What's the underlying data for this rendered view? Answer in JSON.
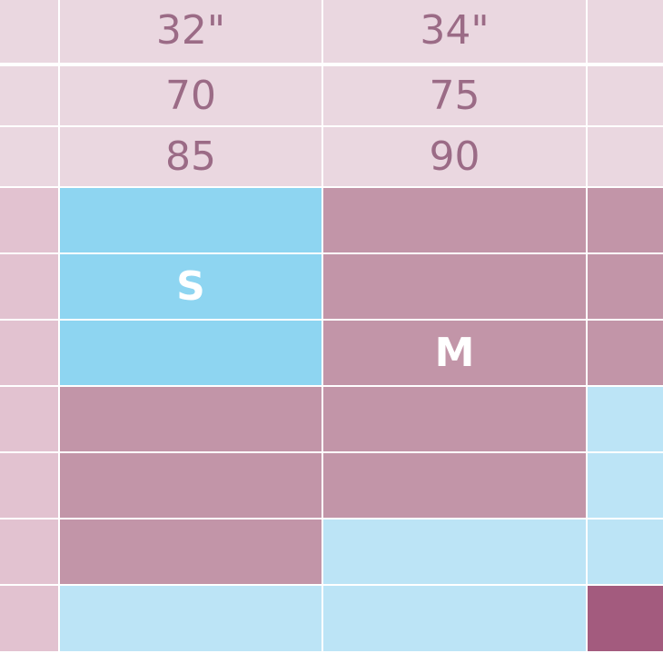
{
  "colors": {
    "header_bg": "#ead7e0",
    "label_col_bg": "#e2c2d0",
    "mauve": "#c295a8",
    "blue_strong": "#8ed5f1",
    "blue_light": "#bce4f6",
    "plum": "#a35b7e",
    "header_text": "#9b6b86",
    "label_text": "#ffffff"
  },
  "header_rows": [
    [
      "",
      "32\"",
      "34\"",
      ""
    ],
    [
      "",
      "70",
      "75",
      ""
    ],
    [
      "",
      "85",
      "90",
      ""
    ]
  ],
  "grid_rows": [
    {
      "cells": [
        {
          "fill": "blue_strong",
          "label": ""
        },
        {
          "fill": "mauve",
          "label": ""
        },
        {
          "fill": "mauve",
          "label": ""
        }
      ]
    },
    {
      "cells": [
        {
          "fill": "blue_strong",
          "label": "S"
        },
        {
          "fill": "mauve",
          "label": ""
        },
        {
          "fill": "mauve",
          "label": ""
        }
      ]
    },
    {
      "cells": [
        {
          "fill": "blue_strong",
          "label": ""
        },
        {
          "fill": "mauve",
          "label": "M"
        },
        {
          "fill": "mauve",
          "label": ""
        }
      ]
    },
    {
      "cells": [
        {
          "fill": "mauve",
          "label": ""
        },
        {
          "fill": "mauve",
          "label": ""
        },
        {
          "fill": "blue_light",
          "label": ""
        }
      ]
    },
    {
      "cells": [
        {
          "fill": "mauve",
          "label": ""
        },
        {
          "fill": "mauve",
          "label": ""
        },
        {
          "fill": "blue_light",
          "label": ""
        }
      ]
    },
    {
      "cells": [
        {
          "fill": "mauve",
          "label": ""
        },
        {
          "fill": "blue_light",
          "label": ""
        },
        {
          "fill": "blue_light",
          "label": ""
        }
      ]
    },
    {
      "cells": [
        {
          "fill": "blue_light",
          "label": ""
        },
        {
          "fill": "blue_light",
          "label": ""
        },
        {
          "fill": "plum",
          "label": ""
        }
      ]
    }
  ]
}
